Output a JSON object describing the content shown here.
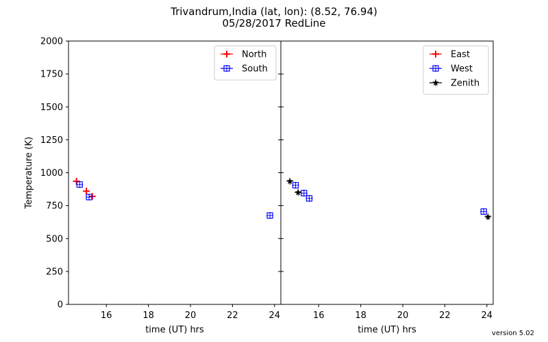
{
  "title_line1": "Trivandrum,India  (lat, lon):  (8.52, 76.94)",
  "title_line2": "05/28/2017 RedLine",
  "version": "version 5.02",
  "colors": {
    "north": "#ff0000",
    "east": "#ff0000",
    "south": "#0000ff",
    "west": "#0000ff",
    "zenith": "#000000"
  },
  "chart_data": [
    {
      "type": "scatter",
      "xlabel": "time (UT) hrs",
      "ylabel": "Temperature (K)",
      "xlim": [
        14.2,
        24.3
      ],
      "ylim": [
        0,
        2000
      ],
      "xticks": [
        16,
        18,
        20,
        22,
        24
      ],
      "yticks": [
        0,
        250,
        500,
        750,
        1000,
        1250,
        1500,
        1750,
        2000
      ],
      "legend_position": "top-right",
      "series": [
        {
          "name": "North",
          "marker": "plus",
          "color": "#ff0000",
          "points": [
            [
              14.58,
              935
            ],
            [
              15.05,
              860
            ],
            [
              15.33,
              820
            ]
          ]
        },
        {
          "name": "South",
          "marker": "square",
          "color": "#0000ff",
          "points": [
            [
              14.73,
              910
            ],
            [
              15.18,
              815
            ],
            [
              23.78,
              675
            ]
          ]
        }
      ]
    },
    {
      "type": "scatter",
      "xlabel": "time (UT) hrs",
      "ylabel": "",
      "xlim": [
        14.2,
        24.3
      ],
      "ylim": [
        0,
        2000
      ],
      "xticks": [
        16,
        18,
        20,
        22,
        24
      ],
      "yticks": [
        0,
        250,
        500,
        750,
        1000,
        1250,
        1500,
        1750,
        2000
      ],
      "legend_position": "top-right",
      "series": [
        {
          "name": "East",
          "marker": "plus",
          "color": "#ff0000",
          "points": []
        },
        {
          "name": "West",
          "marker": "square",
          "color": "#0000ff",
          "points": [
            [
              14.9,
              905
            ],
            [
              15.3,
              845
            ],
            [
              15.55,
              805
            ],
            [
              23.85,
              705
            ]
          ]
        },
        {
          "name": "Zenith",
          "marker": "star",
          "color": "#000000",
          "points": [
            [
              14.63,
              935
            ],
            [
              15.02,
              850
            ],
            [
              24.05,
              665
            ]
          ]
        }
      ]
    }
  ]
}
